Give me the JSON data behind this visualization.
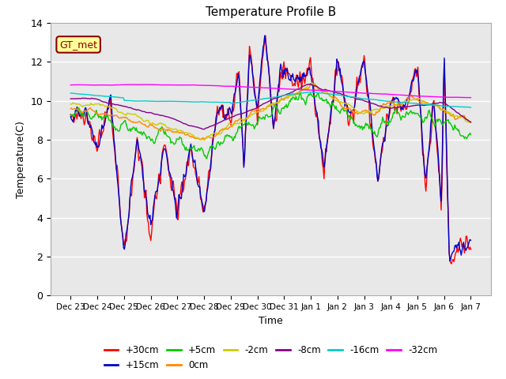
{
  "title": "Temperature Profile B",
  "xlabel": "Time",
  "ylabel": "Temperature(C)",
  "ylim": [
    0,
    14
  ],
  "yticks": [
    0,
    2,
    4,
    6,
    8,
    10,
    12,
    14
  ],
  "annotation_text": "GT_met",
  "legend": [
    {
      "label": "+30cm",
      "color": "#FF0000"
    },
    {
      "label": "+15cm",
      "color": "#0000CC"
    },
    {
      "label": "+5cm",
      "color": "#00CC00"
    },
    {
      "label": "0cm",
      "color": "#FF8800"
    },
    {
      "label": "-2cm",
      "color": "#CCCC00"
    },
    {
      "label": "-8cm",
      "color": "#880088"
    },
    {
      "label": "-16cm",
      "color": "#00CCCC"
    },
    {
      "label": "-32cm",
      "color": "#FF00FF"
    }
  ],
  "bg_color": "#E8E8E8",
  "grid_color": "#FFFFFF",
  "num_points": 500
}
